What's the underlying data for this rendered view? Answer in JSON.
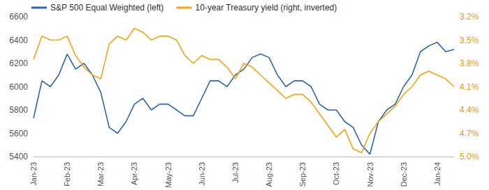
{
  "chart_data": {
    "type": "line",
    "categories": [
      "Jan-23",
      null,
      null,
      null,
      "Feb-23",
      null,
      null,
      null,
      "Mar-23",
      null,
      null,
      null,
      "Apr-23",
      null,
      null,
      null,
      "May-23",
      null,
      null,
      null,
      "Jun-23",
      null,
      null,
      null,
      "Jul-23",
      null,
      null,
      null,
      "Aug-23",
      null,
      null,
      null,
      "Sep-23",
      null,
      null,
      null,
      "Oct-23",
      null,
      null,
      null,
      "Nov-23",
      null,
      null,
      null,
      "Dec-23",
      null,
      null,
      null,
      "Jan-24",
      null,
      null
    ],
    "series": [
      {
        "name": "S&P 500 Equal Weighted (left)",
        "color": "#2f64a8",
        "values": [
          5730,
          6050,
          6000,
          6100,
          6280,
          6150,
          6200,
          6100,
          5950,
          5650,
          5600,
          5700,
          5850,
          5900,
          5800,
          5850,
          5850,
          5800,
          5750,
          5750,
          5900,
          6050,
          6050,
          6000,
          6100,
          6150,
          6250,
          6280,
          6250,
          6100,
          6000,
          6050,
          6050,
          6000,
          5850,
          5800,
          5800,
          5700,
          5650,
          5500,
          5420,
          5700,
          5800,
          5850,
          6000,
          6100,
          6300,
          6350,
          6380,
          6300,
          6320
        ]
      },
      {
        "name": "10-year Treasury yield (right, inverted)",
        "color": "#f2a31b",
        "axis": "y2",
        "values": [
          3.75,
          3.45,
          3.5,
          3.5,
          3.45,
          3.7,
          3.85,
          3.95,
          4.0,
          3.55,
          3.45,
          3.5,
          3.35,
          3.4,
          3.5,
          3.45,
          3.45,
          3.5,
          3.7,
          3.8,
          3.7,
          3.75,
          3.75,
          3.85,
          4.0,
          3.8,
          3.85,
          3.95,
          4.05,
          4.15,
          4.25,
          4.2,
          4.2,
          4.3,
          4.45,
          4.6,
          4.75,
          4.65,
          4.9,
          4.95,
          4.7,
          4.55,
          4.45,
          4.35,
          4.2,
          4.1,
          3.95,
          3.9,
          3.95,
          4.0,
          4.1
        ]
      }
    ],
    "ylim": [
      5400,
      6600
    ],
    "yticks": [
      5400,
      5600,
      5800,
      6000,
      6200,
      6400,
      6600
    ],
    "y2lim": [
      3.2,
      5.0
    ],
    "y2ticks": [
      {
        "value": 3.2,
        "label": "3.2%"
      },
      {
        "value": 3.5,
        "label": "3.5%"
      },
      {
        "value": 3.8,
        "label": "3.8%"
      },
      {
        "value": 4.1,
        "label": "4.1%"
      },
      {
        "value": 4.4,
        "label": "4.4%"
      },
      {
        "value": 4.7,
        "label": "4.7%"
      },
      {
        "value": 5.0,
        "label": "5.0%"
      }
    ],
    "grid": false,
    "legend": "top-left"
  }
}
